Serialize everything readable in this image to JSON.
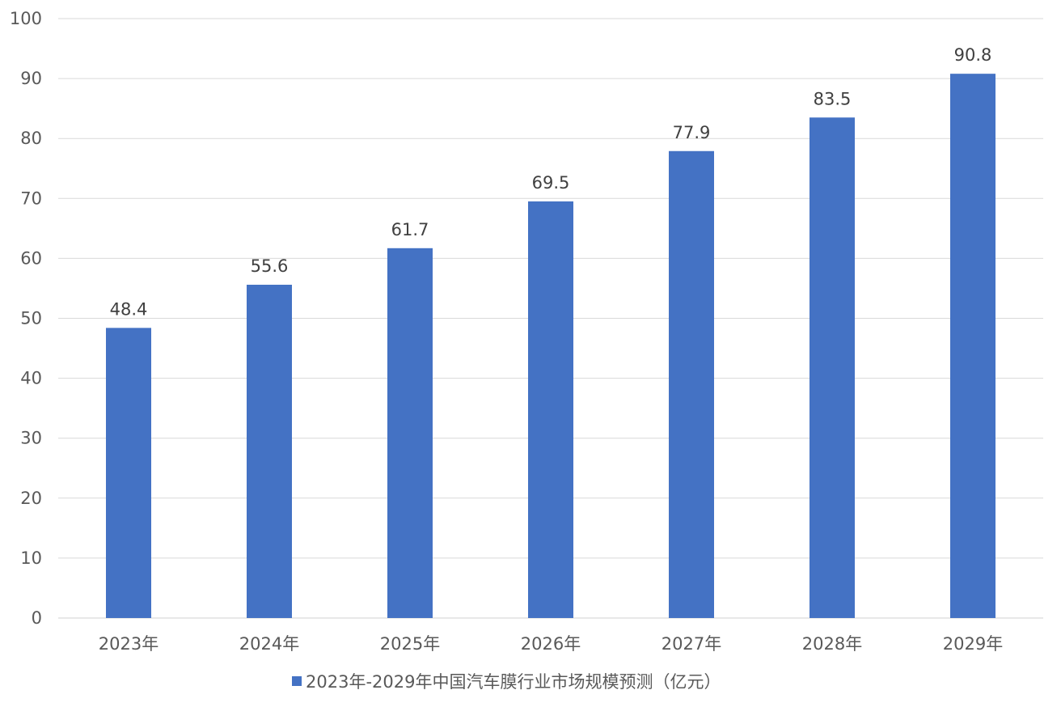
{
  "chart_data": {
    "type": "bar",
    "title": "",
    "xlabel": "",
    "ylabel": "",
    "categories": [
      "2023年",
      "2024年",
      "2025年",
      "2026年",
      "2027年",
      "2028年",
      "2029年"
    ],
    "series": [
      {
        "name": "2023年-2029年中国汽车膜行业市场规模预测（亿元）",
        "values": [
          48.4,
          55.6,
          61.7,
          69.5,
          77.9,
          83.5,
          90.8
        ],
        "color": "#4472c4"
      }
    ],
    "data_labels": [
      "48.4",
      "55.6",
      "61.7",
      "69.5",
      "77.9",
      "83.5",
      "90.8"
    ],
    "ylim": [
      0,
      100
    ],
    "yticks": [
      0,
      10,
      20,
      30,
      40,
      50,
      60,
      70,
      80,
      90,
      100
    ],
    "grid": true,
    "legend_position": "bottom"
  }
}
